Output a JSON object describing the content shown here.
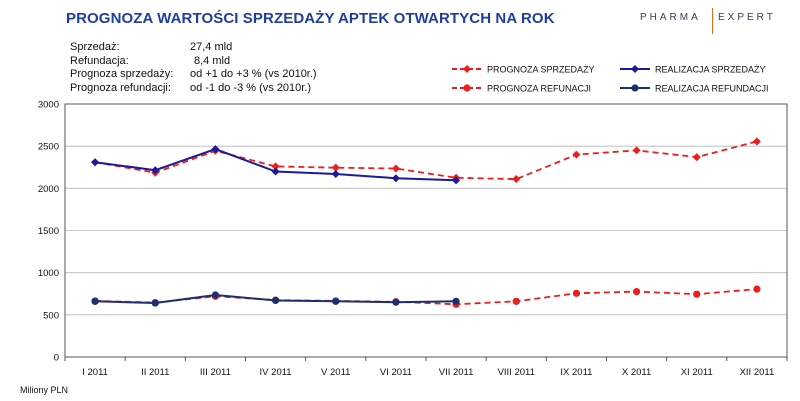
{
  "title": "PROGNOZA WARTOŚCI SPRZEDAŻY APTEK OTWARTYCH NA ROK",
  "logo": {
    "left": "PHARMA",
    "right": "EXPERT",
    "sub": ""
  },
  "info": [
    {
      "label": "Sprzedaż:",
      "value": "27,4  mld"
    },
    {
      "label": "Refundacja:",
      "value": "8,4  mld"
    },
    {
      "label": "Prognoza sprzedaży:",
      "value": "od +1 do +3 % (vs 2010r.)"
    },
    {
      "label": "Prognoza refundacji:",
      "value": "od -1 do -3 % (vs 2010r.)"
    }
  ],
  "unit_label": "Miliony PLN",
  "chart_data": {
    "type": "line",
    "categories": [
      "I 2011",
      "II 2011",
      "III 2011",
      "IV 2011",
      "V 2011",
      "VI 2011",
      "VII 2011",
      "VIII 2011",
      "IX 2011",
      "X 2011",
      "XI 2011",
      "XII 2011"
    ],
    "ylim": [
      0,
      3000
    ],
    "yticks": [
      0,
      500,
      1000,
      1500,
      2000,
      2500,
      3000
    ],
    "grid": true,
    "legend_position": "top-right",
    "series": [
      {
        "name": "PROGNOZA SPRZEDAŻY",
        "color": "#ee1c1c",
        "dashed": true,
        "marker": "diamond",
        "values": [
          2310,
          2185,
          2445,
          2260,
          2245,
          2235,
          2125,
          2110,
          2400,
          2450,
          2370,
          2555
        ]
      },
      {
        "name": "REALIZACJA SPRZEDAŻY",
        "color": "#1a1a9a",
        "dashed": false,
        "marker": "diamond",
        "values": [
          2310,
          2215,
          2465,
          2200,
          2170,
          2120,
          2095,
          null,
          null,
          null,
          null,
          null
        ]
      },
      {
        "name": "PROGNOZA REFUNACJI",
        "color": "#ee1c1c",
        "dashed": true,
        "marker": "circle",
        "values": [
          665,
          645,
          720,
          675,
          665,
          655,
          625,
          660,
          755,
          775,
          745,
          805
        ]
      },
      {
        "name": "REALIZACJA REFUNDACJI",
        "color": "#1a3070",
        "dashed": false,
        "marker": "circle",
        "values": [
          660,
          640,
          735,
          670,
          660,
          650,
          660,
          null,
          null,
          null,
          null,
          null
        ]
      }
    ]
  }
}
